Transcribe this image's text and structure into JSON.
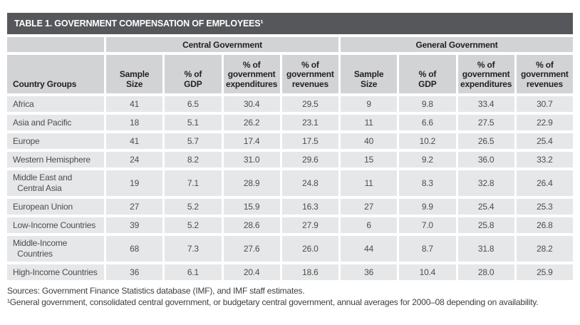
{
  "colors": {
    "title_bar_bg": "#56575a",
    "title_text": "#ffffff",
    "header_cell_bg": "#d2d3d5",
    "data_cell_bg": "#e6e7e8",
    "data_text": "#4c4d4f",
    "header_text": "#231f20"
  },
  "title": "TABLE 1. GOVERNMENT COMPENSATION OF EMPLOYEES¹",
  "group_headers": {
    "central": "Central Government",
    "general": "General Government"
  },
  "column_headers": [
    "Country Groups",
    "Sample\nSize",
    "% of\nGDP",
    "% of\ngovernment\nexpenditures",
    "% of\ngovernment\nrevenues",
    "Sample\nSize",
    "% of\nGDP",
    "% of\ngovernment\nexpenditures",
    "% of\ngovernment\nrevenues"
  ],
  "rows": [
    {
      "name": "Africa",
      "values": [
        "41",
        "6.5",
        "30.4",
        "29.5",
        "9",
        "9.8",
        "33.4",
        "30.7"
      ]
    },
    {
      "name": "Asia and Pacific",
      "values": [
        "18",
        "5.1",
        "26.2",
        "23.1",
        "11",
        "6.6",
        "27.5",
        "22.9"
      ]
    },
    {
      "name": "Europe",
      "values": [
        "41",
        "5.7",
        "17.4",
        "17.5",
        "40",
        "10.2",
        "26.5",
        "25.4"
      ]
    },
    {
      "name": "Western Hemisphere",
      "values": [
        "24",
        "8.2",
        "31.0",
        "29.6",
        "15",
        "9.2",
        "36.0",
        "33.2"
      ]
    },
    {
      "name": "Middle East and\n  Central Asia",
      "values": [
        "19",
        "7.1",
        "28.9",
        "24.8",
        "11",
        "8.3",
        "32.8",
        "26.4"
      ]
    },
    {
      "name": "European Union",
      "values": [
        "27",
        "5.2",
        "15.9",
        "16.3",
        "27",
        "9.9",
        "25.4",
        "25.3"
      ]
    },
    {
      "name": "Low-Income Countries",
      "values": [
        "39",
        "5.2",
        "28.6",
        "27.9",
        "6",
        "7.0",
        "25.8",
        "26.8"
      ]
    },
    {
      "name": "Middle-Income\n  Countries",
      "values": [
        "68",
        "7.3",
        "27.6",
        "26.0",
        "44",
        "8.7",
        "31.8",
        "28.2"
      ]
    },
    {
      "name": "High-Income Countries",
      "values": [
        "36",
        "6.1",
        "20.4",
        "18.6",
        "36",
        "10.4",
        "28.0",
        "25.9"
      ]
    }
  ],
  "footer": {
    "sources": "Sources: Government Finance Statistics database (IMF), and IMF staff estimates.",
    "footnote": "¹General government, consolidated central government, or budgetary central government, annual averages for 2000–08 depending on availability."
  }
}
